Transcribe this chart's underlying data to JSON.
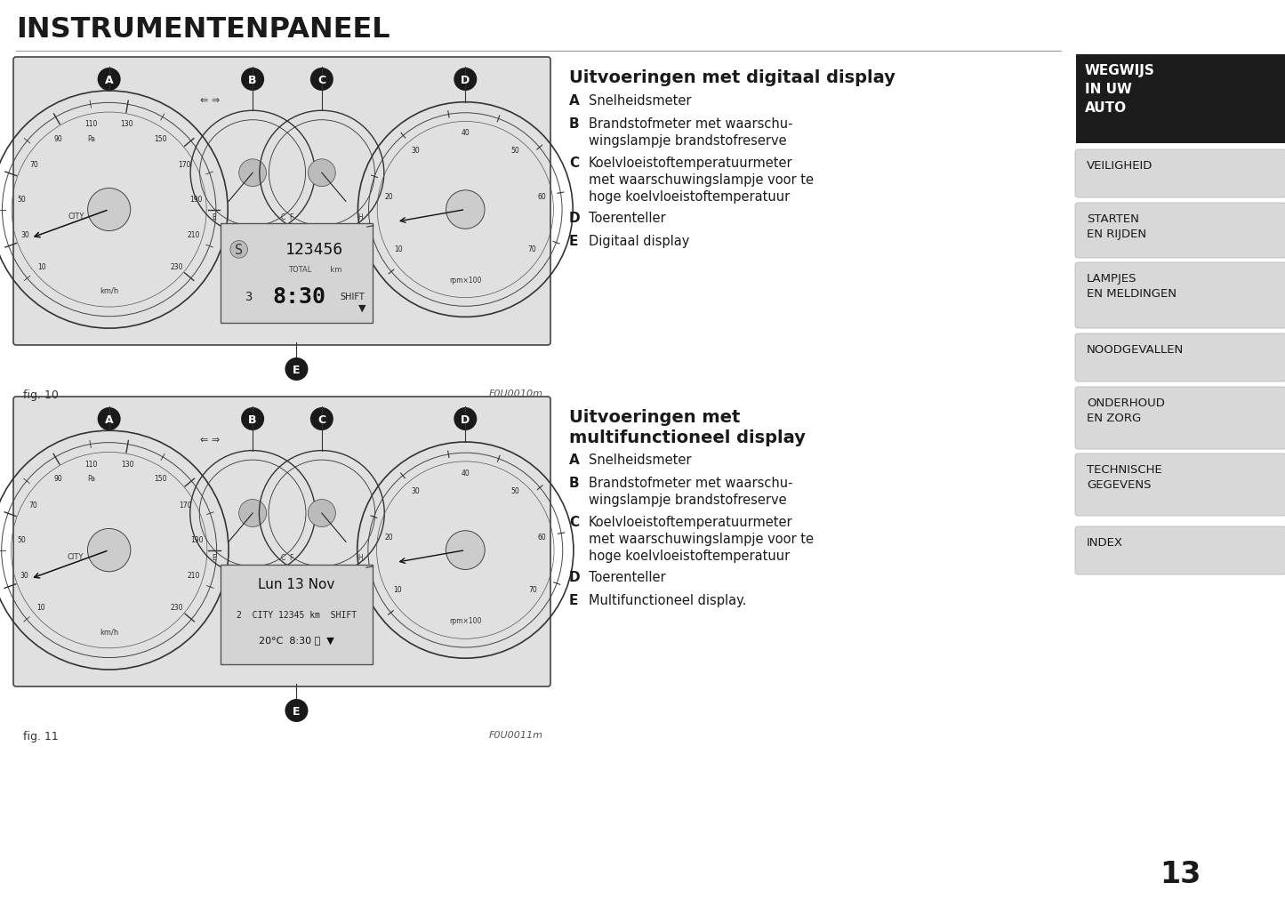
{
  "title": "INSTRUMENTENPANEEL",
  "fig1_label": "fig. 10",
  "fig1_code": "F0U0010m",
  "fig2_label": "fig. 11",
  "fig2_code": "F0U0011m",
  "section1_title": "Uitvoeringen met digitaal display",
  "section1_items": [
    [
      "A",
      "Snelheidsmeter"
    ],
    [
      "B",
      "Brandstofmeter met waarschu-\nwingslampje brandstofreserve"
    ],
    [
      "C",
      "Koelvloeistoftemperatuurmeter\nmet waarschuwingslampje voor te\nhoge koelvloeistoftemperatuur"
    ],
    [
      "D",
      "Toerenteller"
    ],
    [
      "E",
      "Digitaal display"
    ]
  ],
  "section2_title": "Uitvoeringen met\nmultifunctioneel display",
  "section2_items": [
    [
      "A",
      "Snelheidsmeter"
    ],
    [
      "B",
      "Brandstofmeter met waarschu-\nwingslampje brandstofreserve"
    ],
    [
      "C",
      "Koelvloeistoftemperatuurmeter\nmet waarschuwingslampje voor te\nhoge koelvloeistoftemperatuur"
    ],
    [
      "D",
      "Toerenteller"
    ],
    [
      "E",
      "Multifunctioneel display."
    ]
  ],
  "sidebar_active": "WEGWIJS\nIN UW\nAUTO",
  "sidebar_items": [
    "VEILIGHEID",
    "STARTEN\nEN RIJDEN",
    "LAMPJES\nEN MELDINGEN",
    "NOODGEVALLEN",
    "ONDERHOUD\nEN ZORG",
    "TECHNISCHE\nGEGEVENS",
    "INDEX"
  ],
  "page_number": "13",
  "bg_color": "#ffffff",
  "diagram_bg": "#e2e2e2",
  "diagram_border": "#555555"
}
